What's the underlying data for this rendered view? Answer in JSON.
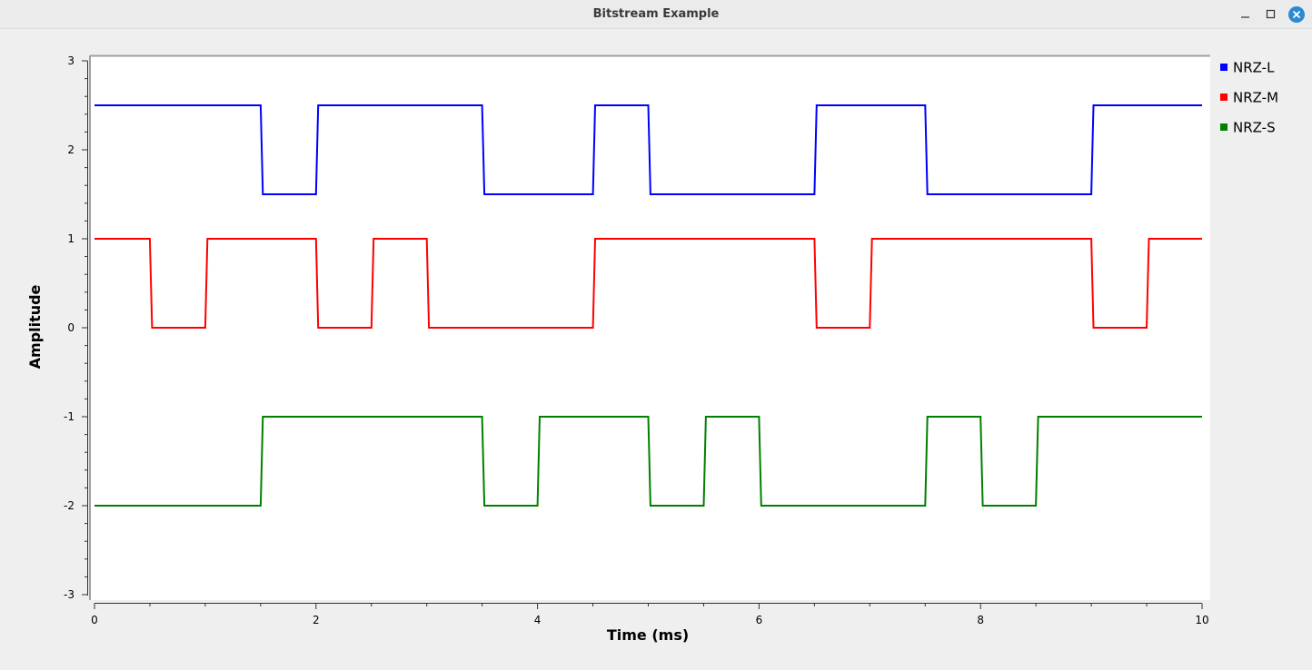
{
  "window": {
    "title": "Bitstream Example",
    "controls": [
      "minimize-icon",
      "maximize-icon",
      "close-icon"
    ],
    "accent_color": "#2a8ad4"
  },
  "chart_data": {
    "type": "line",
    "step": true,
    "xlabel": "Time (ms)",
    "ylabel": "Amplitude",
    "xlim": [
      0,
      10
    ],
    "ylim": [
      -3,
      3
    ],
    "xticks": [
      0,
      2,
      4,
      6,
      8,
      10
    ],
    "yticks": [
      3,
      2,
      1,
      0,
      -1,
      -2,
      -3
    ],
    "grid": false,
    "legend_position": "right",
    "series": [
      {
        "name": "NRZ-L",
        "color": "#0000ff",
        "x": [
          0,
          1.5,
          1.5,
          2.0,
          2.0,
          3.5,
          3.5,
          4.5,
          4.5,
          5.0,
          5.0,
          6.5,
          6.5,
          7.5,
          7.5,
          9.0,
          9.0,
          10
        ],
        "y": [
          2.5,
          2.5,
          1.5,
          1.5,
          2.5,
          2.5,
          1.5,
          1.5,
          2.5,
          2.5,
          1.5,
          1.5,
          2.5,
          2.5,
          1.5,
          1.5,
          2.5,
          2.5
        ]
      },
      {
        "name": "NRZ-M",
        "color": "#ff0000",
        "x": [
          0,
          0.5,
          0.5,
          1.0,
          1.0,
          2.0,
          2.0,
          2.5,
          2.5,
          3.0,
          3.0,
          4.5,
          4.5,
          6.5,
          6.5,
          7.0,
          7.0,
          9.0,
          9.0,
          9.5,
          9.5,
          10
        ],
        "y": [
          1,
          1,
          0,
          0,
          1,
          1,
          0,
          0,
          1,
          1,
          0,
          0,
          1,
          1,
          0,
          0,
          1,
          1,
          0,
          0,
          1,
          1
        ]
      },
      {
        "name": "NRZ-S",
        "color": "#008000",
        "x": [
          0,
          1.5,
          1.5,
          3.5,
          3.5,
          4.0,
          4.0,
          5.0,
          5.0,
          5.5,
          5.5,
          6.0,
          6.0,
          7.5,
          7.5,
          8.0,
          8.0,
          8.5,
          8.5,
          10
        ],
        "y": [
          -2,
          -2,
          -1,
          -1,
          -2,
          -2,
          -1,
          -1,
          -2,
          -2,
          -1,
          -1,
          -2,
          -2,
          -1,
          -1,
          -2,
          -2,
          -1,
          -1
        ]
      }
    ]
  }
}
